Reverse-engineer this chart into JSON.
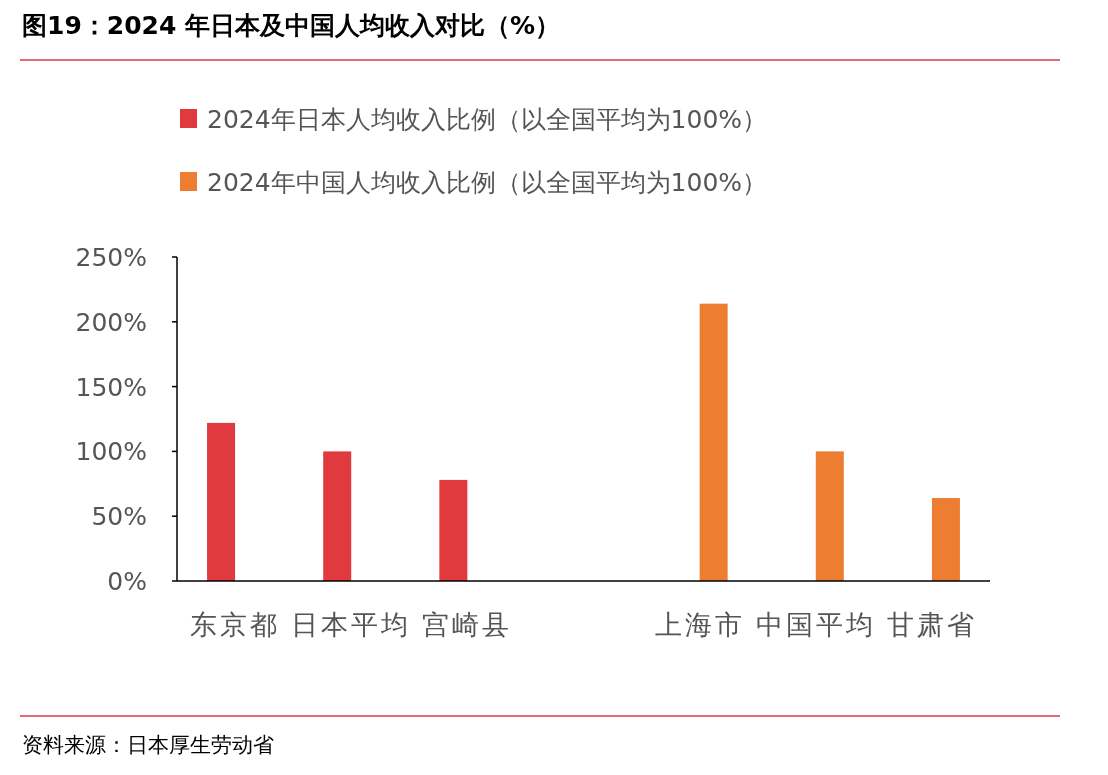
{
  "chart_data": {
    "type": "bar",
    "title": "图19：2024 年日本及中国人均收入对比（%）",
    "categories": [
      "东京都",
      "日本平均",
      "宫崎县",
      null,
      "上海市",
      "中国平均",
      "甘肃省"
    ],
    "series": [
      {
        "name": "2024年日本人均收入比例（以全国平均为100%）",
        "color": "#e0393e",
        "values": [
          122,
          100,
          78,
          null,
          null,
          null,
          null
        ]
      },
      {
        "name": "2024年中国人均收入比例（以全国平均为100%）",
        "color": "#ed7d31",
        "values": [
          null,
          null,
          null,
          null,
          214,
          100,
          64
        ]
      }
    ],
    "ylim": [
      0,
      250
    ],
    "yticks": [
      {
        "value": 0,
        "label": "0%"
      },
      {
        "value": 50,
        "label": "50%"
      },
      {
        "value": 100,
        "label": "100%"
      },
      {
        "value": 150,
        "label": "150%"
      },
      {
        "value": 200,
        "label": "200%"
      },
      {
        "value": 250,
        "label": "250%"
      }
    ],
    "grid": false,
    "legend": "top left",
    "annotations": [
      "资料来源：日本厚生劳动省"
    ]
  }
}
